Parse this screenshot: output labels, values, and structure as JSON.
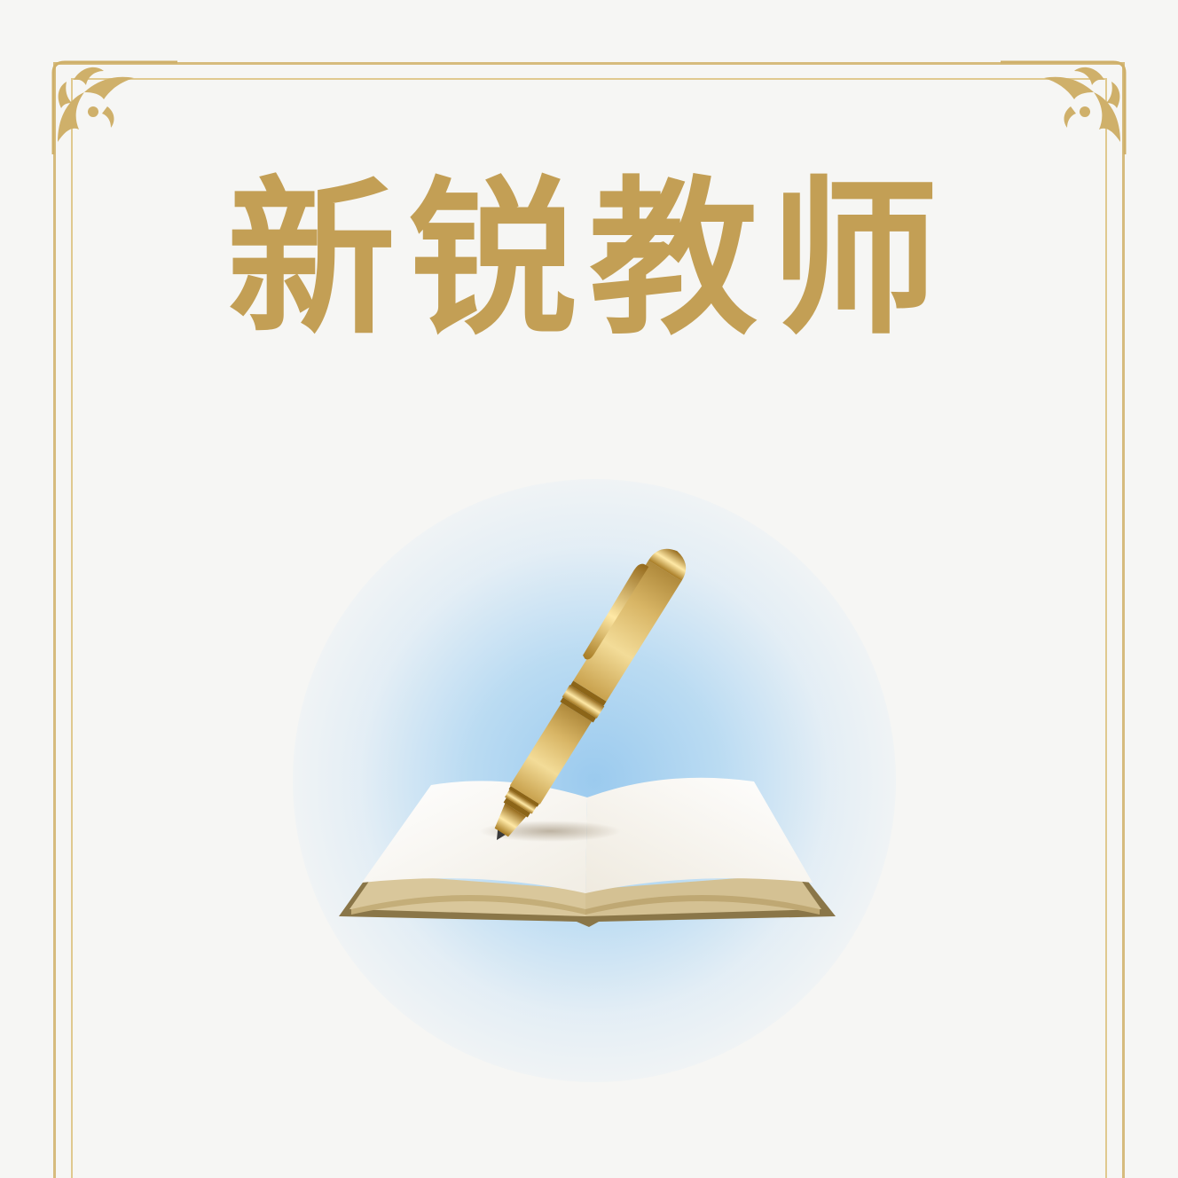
{
  "title": "新锐教师",
  "colors": {
    "gold": "#c39f55",
    "frame": "#d6bb7d",
    "glow": "#9ecbef",
    "background": "#f6f6f4"
  },
  "icons": {
    "corner_ornament": "flourish-corner-icon",
    "pen": "fountain-pen-icon",
    "book": "open-book-icon"
  }
}
